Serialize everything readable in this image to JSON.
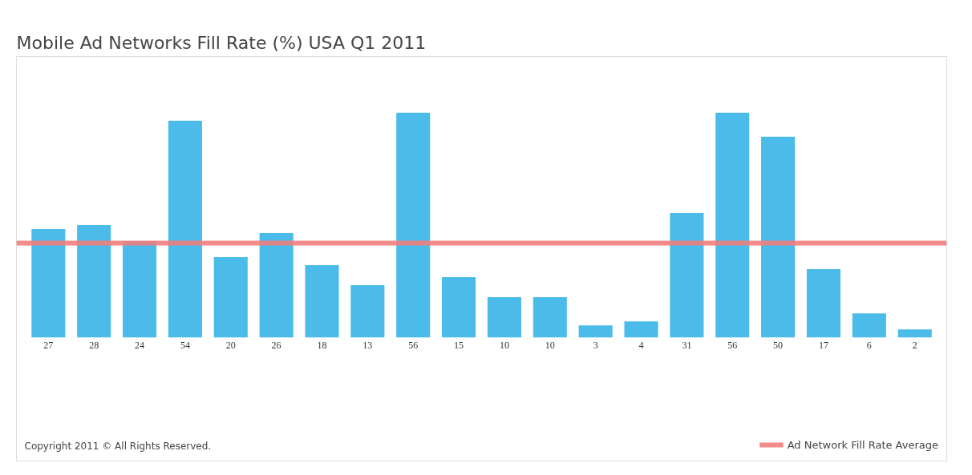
{
  "chart_data": {
    "type": "bar",
    "title": "Mobile Ad Networks Fill Rate (%) USA Q1 2011",
    "categories": [
      null,
      null,
      null,
      null,
      null,
      null,
      null,
      null,
      null,
      null,
      null,
      null,
      null,
      null,
      null,
      null,
      null,
      null,
      null,
      null
    ],
    "values": [
      27,
      28,
      24,
      54,
      20,
      26,
      18,
      13,
      56,
      15,
      10,
      10,
      3,
      4,
      31,
      56,
      50,
      17,
      6,
      2
    ],
    "color": "#4bbbea",
    "data_labels": true,
    "ref_lines": [
      {
        "axis": "y",
        "value": 23.5,
        "label": "Ad Network Fill Rate Average",
        "color": "#ef7f7d",
        "line_style": "solid"
      }
    ],
    "legend": "bottom right",
    "grid": false,
    "annotations": [
      "Copyright 2011 © All Rights Reserved."
    ]
  }
}
